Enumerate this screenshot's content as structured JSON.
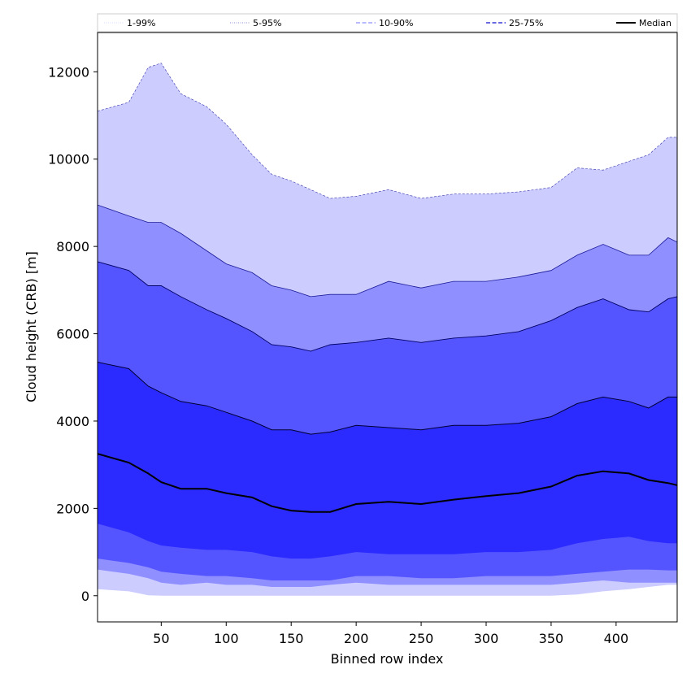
{
  "chart_data": {
    "type": "area",
    "xlabel": "Binned row index",
    "ylabel": "Cloud height (CRB) [m]",
    "xlim": [
      1,
      447
    ],
    "ylim": [
      -600,
      12900
    ],
    "xticks": [
      50,
      100,
      150,
      200,
      250,
      300,
      350,
      400
    ],
    "yticks": [
      0,
      2000,
      4000,
      6000,
      8000,
      10000,
      12000
    ],
    "grid": false,
    "legend_position": "top",
    "legend": [
      {
        "label": "1-99%",
        "style": "dotted",
        "color": "#ccccff"
      },
      {
        "label": "5-95%",
        "style": "dotted",
        "color": "#6666cc"
      },
      {
        "label": "10-90%",
        "style": "dashed",
        "color": "#8f8fff"
      },
      {
        "label": "25-75%",
        "style": "dashed",
        "color": "#3a3ad6"
      },
      {
        "label": "Median",
        "style": "solid",
        "color": "#000000"
      }
    ],
    "fill_colors": {
      "p1_99": "#ccccff",
      "p5_95": "#8f8fff",
      "p10_90": "#5555ff",
      "p25_75": "#2b2bff"
    },
    "x": [
      1,
      25,
      40,
      50,
      65,
      85,
      100,
      120,
      135,
      150,
      165,
      180,
      200,
      225,
      250,
      275,
      300,
      325,
      350,
      370,
      390,
      410,
      425,
      440,
      447
    ],
    "series": [
      {
        "name": "p99",
        "values": [
          11100,
          11300,
          12100,
          12200,
          11500,
          11200,
          10800,
          10100,
          9650,
          9500,
          9300,
          9100,
          9150,
          9300,
          9100,
          9200,
          9200,
          9250,
          9350,
          9800,
          9750,
          9950,
          10100,
          10500,
          10500
        ]
      },
      {
        "name": "p95",
        "values": [
          8950,
          8700,
          8550,
          8550,
          8300,
          7900,
          7600,
          7400,
          7100,
          7000,
          6850,
          6900,
          6900,
          7200,
          7050,
          7200,
          7200,
          7300,
          7450,
          7800,
          8050,
          7800,
          7800,
          8200,
          8100
        ]
      },
      {
        "name": "p90",
        "values": [
          7650,
          7450,
          7100,
          7100,
          6850,
          6550,
          6350,
          6050,
          5750,
          5700,
          5600,
          5750,
          5800,
          5900,
          5800,
          5900,
          5950,
          6050,
          6300,
          6600,
          6800,
          6550,
          6500,
          6800,
          6850
        ]
      },
      {
        "name": "p75",
        "values": [
          5350,
          5200,
          4800,
          4650,
          4450,
          4350,
          4200,
          4000,
          3800,
          3800,
          3700,
          3750,
          3900,
          3850,
          3800,
          3900,
          3900,
          3950,
          4100,
          4400,
          4550,
          4450,
          4300,
          4550,
          4550
        ]
      },
      {
        "name": "p50",
        "values": [
          3250,
          3050,
          2800,
          2600,
          2450,
          2450,
          2350,
          2250,
          2050,
          1950,
          1920,
          1920,
          2100,
          2150,
          2100,
          2200,
          2280,
          2350,
          2500,
          2750,
          2850,
          2800,
          2650,
          2580,
          2530
        ]
      },
      {
        "name": "p25",
        "values": [
          1650,
          1450,
          1250,
          1150,
          1100,
          1050,
          1050,
          1000,
          900,
          850,
          850,
          900,
          1000,
          950,
          950,
          950,
          1000,
          1000,
          1050,
          1200,
          1300,
          1350,
          1250,
          1200,
          1200
        ]
      },
      {
        "name": "p10",
        "values": [
          850,
          750,
          650,
          550,
          500,
          450,
          450,
          400,
          350,
          350,
          350,
          350,
          450,
          450,
          400,
          400,
          450,
          450,
          450,
          500,
          550,
          600,
          600,
          580,
          580
        ]
      },
      {
        "name": "p5",
        "values": [
          600,
          500,
          400,
          300,
          250,
          300,
          250,
          250,
          200,
          200,
          200,
          250,
          300,
          250,
          250,
          250,
          250,
          250,
          250,
          300,
          350,
          300,
          300,
          300,
          300
        ]
      },
      {
        "name": "p1",
        "values": [
          150,
          100,
          10,
          0,
          0,
          0,
          0,
          0,
          0,
          0,
          0,
          0,
          0,
          0,
          0,
          0,
          0,
          0,
          0,
          30,
          100,
          150,
          200,
          250,
          250
        ]
      }
    ]
  }
}
